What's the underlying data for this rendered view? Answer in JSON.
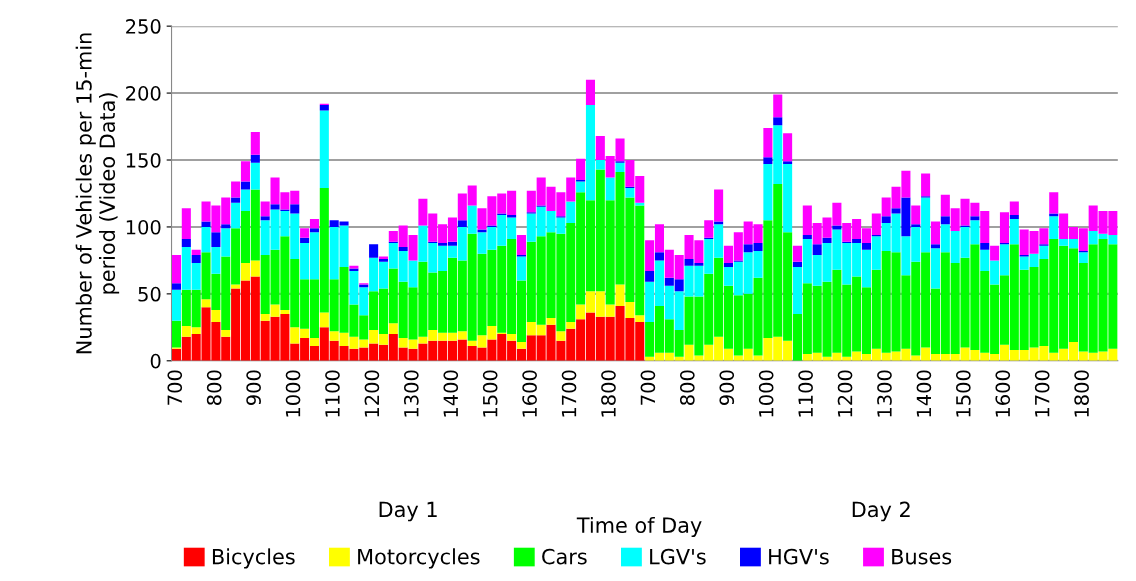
{
  "chart_data": {
    "type": "bar",
    "stacked": true,
    "xlabel": "Time of Day",
    "ylabel": "Number of Vehicles per 15-min\nperiod (Video Data)",
    "annotations": [
      "Day 1",
      "Day 2"
    ],
    "categories": [
      "700",
      null,
      null,
      null,
      "800",
      null,
      null,
      null,
      "900",
      null,
      null,
      null,
      "1000",
      null,
      null,
      null,
      "1100",
      null,
      null,
      null,
      "1200",
      null,
      null,
      null,
      "1300",
      null,
      null,
      null,
      "1400",
      null,
      null,
      null,
      "1500",
      null,
      null,
      null,
      "1600",
      null,
      null,
      null,
      "1700",
      null,
      null,
      null,
      "1800",
      null,
      null,
      null,
      "700",
      null,
      null,
      null,
      "800",
      null,
      null,
      null,
      "900",
      null,
      null,
      null,
      "1000",
      null,
      null,
      null,
      "1100",
      null,
      null,
      null,
      "1200",
      null,
      null,
      null,
      "1300",
      null,
      null,
      null,
      "1400",
      null,
      null,
      null,
      "1500",
      null,
      null,
      null,
      "1600",
      null,
      null,
      null,
      "1700",
      null,
      null,
      null,
      "1800",
      null,
      null,
      null
    ],
    "series": [
      {
        "name": "Bicycles",
        "color": "#ff0000",
        "values": [
          9,
          18,
          20,
          40,
          29,
          18,
          54,
          60,
          63,
          30,
          33,
          35,
          13,
          17,
          11,
          25,
          15,
          11,
          9,
          10,
          13,
          12,
          20,
          10,
          9,
          13,
          15,
          15,
          15,
          16,
          11,
          10,
          16,
          20,
          15,
          9,
          19,
          19,
          27,
          15,
          24,
          31,
          36,
          33,
          33,
          41,
          32,
          29,
          0,
          0,
          0,
          0,
          0,
          0,
          0,
          0,
          0,
          0,
          0,
          0,
          0,
          0,
          0,
          0,
          0,
          0,
          0,
          0,
          0,
          0,
          0,
          0,
          0,
          0,
          0,
          0,
          0,
          0,
          0,
          0,
          0,
          0,
          0,
          0,
          0,
          0,
          0,
          0,
          0,
          0,
          0,
          0,
          0,
          0,
          0,
          0
        ]
      },
      {
        "name": "Motorcycles",
        "color": "#ffff00",
        "values": [
          1,
          8,
          5,
          6,
          9,
          5,
          3,
          13,
          12,
          5,
          9,
          3,
          12,
          7,
          6,
          11,
          7,
          10,
          9,
          6,
          10,
          8,
          8,
          7,
          7,
          5,
          8,
          6,
          6,
          6,
          4,
          9,
          10,
          1,
          5,
          5,
          10,
          8,
          5,
          7,
          5,
          11,
          16,
          19,
          9,
          16,
          12,
          5,
          3,
          6,
          6,
          3,
          12,
          4,
          12,
          18,
          9,
          4,
          9,
          4,
          17,
          18,
          15,
          0,
          5,
          6,
          3,
          6,
          3,
          7,
          5,
          9,
          6,
          7,
          9,
          4,
          10,
          5,
          5,
          5,
          10,
          8,
          6,
          5,
          12,
          8,
          8,
          10,
          11,
          6,
          9,
          14,
          7,
          6,
          7,
          9
        ]
      },
      {
        "name": "Cars",
        "color": "#00ff00",
        "values": [
          20,
          27,
          28,
          35,
          27,
          55,
          42,
          39,
          53,
          44,
          41,
          55,
          51,
          37,
          44,
          93,
          39,
          49,
          24,
          18,
          29,
          34,
          41,
          42,
          39,
          56,
          43,
          46,
          56,
          53,
          80,
          61,
          57,
          65,
          71,
          46,
          60,
          66,
          64,
          73,
          74,
          84,
          68,
          91,
          78,
          84,
          78,
          82,
          26,
          35,
          25,
          20,
          36,
          44,
          53,
          59,
          47,
          45,
          41,
          58,
          88,
          114,
          81,
          35,
          53,
          50,
          56,
          62,
          54,
          56,
          50,
          59,
          76,
          74,
          55,
          70,
          71,
          49,
          76,
          68,
          67,
          79,
          61,
          52,
          52,
          79,
          60,
          60,
          65,
          85,
          77,
          70,
          66,
          81,
          84,
          78
        ]
      },
      {
        "name": "LGV's",
        "color": "#00ffff",
        "values": [
          23,
          32,
          20,
          19,
          20,
          21,
          19,
          16,
          20,
          26,
          30,
          19,
          34,
          27,
          35,
          58,
          39,
          31,
          25,
          21,
          25,
          20,
          19,
          23,
          20,
          27,
          22,
          19,
          9,
          25,
          21,
          16,
          17,
          23,
          16,
          18,
          21,
          22,
          16,
          12,
          16,
          8,
          71,
          7,
          17,
          7,
          7,
          2,
          30,
          34,
          25,
          29,
          23,
          23,
          26,
          25,
          14,
          25,
          31,
          20,
          42,
          44,
          51,
          35,
          33,
          23,
          29,
          30,
          31,
          25,
          28,
          25,
          21,
          29,
          29,
          26,
          41,
          30,
          21,
          24,
          23,
          18,
          16,
          18,
          23,
          19,
          10,
          10,
          10,
          17,
          5,
          7,
          8,
          10,
          4,
          7
        ]
      },
      {
        "name": "HGV's",
        "color": "#0000ff",
        "values": [
          5,
          6,
          6,
          4,
          11,
          3,
          4,
          6,
          6,
          3,
          4,
          1,
          7,
          4,
          3,
          4,
          5,
          3,
          2,
          2,
          10,
          2,
          1,
          3,
          0,
          0,
          1,
          2,
          3,
          5,
          0,
          2,
          1,
          1,
          2,
          1,
          1,
          1,
          0,
          1,
          0,
          1,
          0,
          0,
          0,
          1,
          1,
          0,
          8,
          6,
          6,
          9,
          5,
          2,
          1,
          2,
          3,
          1,
          6,
          6,
          5,
          6,
          2,
          4,
          3,
          8,
          4,
          3,
          1,
          3,
          5,
          1,
          5,
          4,
          29,
          2,
          1,
          3,
          6,
          0,
          1,
          3,
          5,
          0,
          1,
          3,
          1,
          0,
          1,
          2,
          0,
          0,
          1,
          0,
          0,
          0
        ]
      },
      {
        "name": "Buses",
        "color": "#ff00ff",
        "values": [
          21,
          23,
          4,
          15,
          20,
          20,
          12,
          15,
          17,
          11,
          20,
          13,
          10,
          7,
          7,
          1,
          0,
          0,
          2,
          1,
          0,
          2,
          8,
          16,
          19,
          20,
          21,
          14,
          18,
          20,
          15,
          16,
          22,
          15,
          18,
          15,
          16,
          21,
          18,
          18,
          18,
          16,
          19,
          18,
          16,
          17,
          20,
          20,
          23,
          21,
          21,
          18,
          18,
          17,
          13,
          24,
          13,
          21,
          17,
          14,
          22,
          17,
          21,
          12,
          22,
          16,
          15,
          17,
          14,
          15,
          11,
          16,
          14,
          16,
          20,
          14,
          17,
          17,
          16,
          17,
          20,
          10,
          24,
          11,
          23,
          10,
          19,
          17,
          12,
          16,
          19,
          9,
          17,
          19,
          17,
          18
        ]
      }
    ],
    "ylim": [
      0,
      250
    ],
    "yticks": [
      0,
      50,
      100,
      150,
      200,
      250
    ],
    "grid": "y",
    "legend": "bottom"
  }
}
